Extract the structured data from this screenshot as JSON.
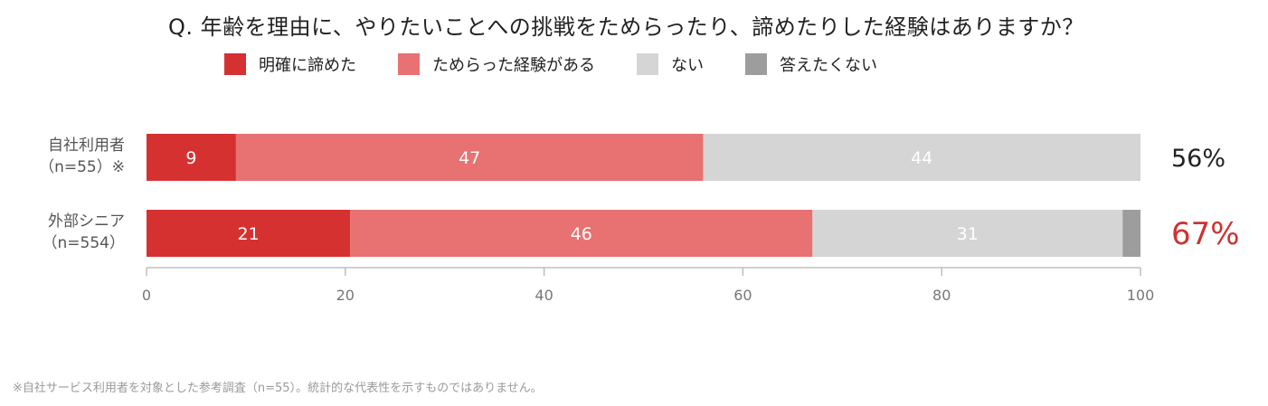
{
  "title": "Q. 年齢を理由に、やりたいことへの挑戦をためらったり、諦めたりした経験はありますか？",
  "legend": [
    {
      "label": "明確に諦めた",
      "color": "#d63131"
    },
    {
      "label": "ためらった経験がある",
      "color": "#e87171"
    },
    {
      "label": "ない",
      "color": "#d5d5d5"
    },
    {
      "label": "答えたくない",
      "color": "#9d9d9d"
    }
  ],
  "chart_data": {
    "type": "bar",
    "orientation": "horizontal",
    "stacked": true,
    "categories": [
      {
        "line1": "自社利用者",
        "line2": "（n=55）※"
      },
      {
        "line1": "外部シニア",
        "line2": "（n=554）"
      }
    ],
    "series": [
      {
        "name": "明確に諦めた",
        "values": [
          9,
          20.5
        ],
        "labels": [
          "9",
          "21"
        ],
        "color": "#d63131"
      },
      {
        "name": "ためらった経験がある",
        "values": [
          47,
          46.5
        ],
        "labels": [
          "47",
          "46"
        ],
        "color": "#e87171"
      },
      {
        "name": "ない",
        "values": [
          44,
          31.2
        ],
        "labels": [
          "44",
          "31"
        ],
        "color": "#d5d5d5"
      },
      {
        "name": "答えたくない",
        "values": [
          0,
          1.8
        ],
        "labels": [
          "",
          ""
        ],
        "color": "#9d9d9d"
      }
    ],
    "totals": [
      {
        "text": "56%",
        "color": "#222222"
      },
      {
        "text": "67%",
        "color": "#cc3333"
      }
    ],
    "xlim": [
      0,
      100
    ],
    "xticks": [
      "0",
      "20",
      "40",
      "60",
      "80",
      "100"
    ],
    "grid": false
  },
  "footnote": "※自社サービス利用者を対象とした参考調査（n=55）。統計的な代表性を示すものではありません。"
}
